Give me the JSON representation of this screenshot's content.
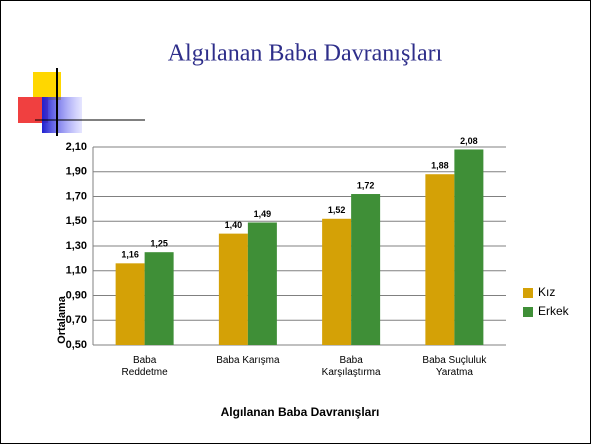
{
  "chart_data": {
    "type": "bar",
    "title": "Algılanan Baba Davranışları",
    "x_label": "Algılanan Baba Davranışları",
    "y_label": "Ortalama",
    "categories": [
      [
        "Baba",
        "Reddetme"
      ],
      [
        "Baba Karışma"
      ],
      [
        "Baba",
        "Karşılaştırma"
      ],
      [
        "Baba Suçluluk",
        "Yaratma"
      ]
    ],
    "series": [
      {
        "name": "Kız",
        "color": "#d4a106",
        "values": [
          1.16,
          1.4,
          1.52,
          1.88
        ],
        "value_labels": [
          "1,16",
          "1,40",
          "1,52",
          "1,88"
        ]
      },
      {
        "name": "Erkek",
        "color": "#3f8f37",
        "values": [
          1.25,
          1.49,
          1.72,
          2.08
        ],
        "value_labels": [
          "1,25",
          "1,49",
          "1,72",
          "2,08"
        ]
      }
    ],
    "ylim": [
      0.5,
      2.1
    ],
    "yticks": [
      {
        "value": 0.5,
        "label": "0,50"
      },
      {
        "value": 0.7,
        "label": "0,70"
      },
      {
        "value": 0.9,
        "label": "0,90"
      },
      {
        "value": 1.1,
        "label": "1,10"
      },
      {
        "value": 1.3,
        "label": "1,30"
      },
      {
        "value": 1.5,
        "label": "1,50"
      },
      {
        "value": 1.7,
        "label": "1,70"
      },
      {
        "value": 1.9,
        "label": "1,90"
      },
      {
        "value": 2.1,
        "label": "2,10"
      }
    ],
    "grid": true,
    "legend": "right"
  }
}
